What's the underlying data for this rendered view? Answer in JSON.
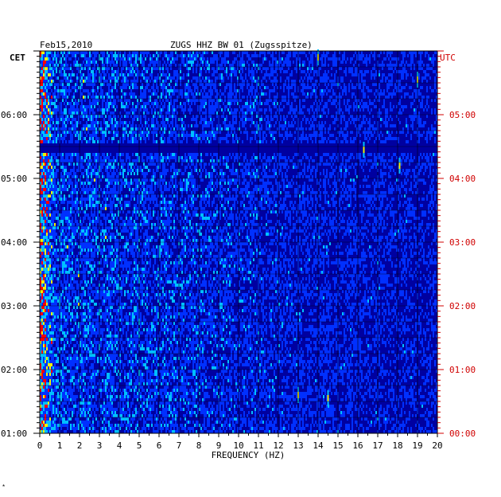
{
  "chart_data": {
    "type": "heatmap",
    "title": "ZUGS HHZ BW 01 (Zugsspitze)",
    "date": "Feb15,2010",
    "left_axis_unit": "CET",
    "right_axis_unit": "UTC",
    "xlabel": "FREQUENCY (HZ)",
    "xlim": [
      0,
      20
    ],
    "x_ticks": [
      "0",
      "1",
      "2",
      "3",
      "4",
      "5",
      "6",
      "7",
      "8",
      "9",
      "10",
      "11",
      "12",
      "13",
      "14",
      "15",
      "16",
      "17",
      "18",
      "19",
      "20"
    ],
    "cet_ticks": [
      {
        "label": "06:00",
        "hour": 6
      },
      {
        "label": "05:00",
        "hour": 5
      },
      {
        "label": "04:00",
        "hour": 4
      },
      {
        "label": "03:00",
        "hour": 3
      },
      {
        "label": "02:00",
        "hour": 2
      },
      {
        "label": "01:00",
        "hour": 1
      }
    ],
    "utc_ticks": [
      {
        "label": "05:00",
        "hour": 5
      },
      {
        "label": "04:00",
        "hour": 4
      },
      {
        "label": "03:00",
        "hour": 3
      },
      {
        "label": "02:00",
        "hour": 2
      },
      {
        "label": "01:00",
        "hour": 1
      },
      {
        "label": "00:00",
        "hour": 0
      }
    ],
    "cet_range": [
      1.0,
      7.0
    ],
    "colormap": [
      "#0000a0",
      "#0030ff",
      "#00c0ff",
      "#f0f000",
      "#ff0000"
    ],
    "grid": true,
    "bright_events": [
      {
        "freq": 13.0,
        "cet_hour": 1.6
      },
      {
        "freq": 14.5,
        "cet_hour": 1.55
      },
      {
        "freq": 16.3,
        "cet_hour": 5.45
      },
      {
        "freq": 18.1,
        "cet_hour": 5.2
      },
      {
        "freq": 19.0,
        "cet_hour": 6.55
      },
      {
        "freq": 14.0,
        "cet_hour": 6.9
      }
    ],
    "quiet_band_cet": [
      5.4,
      5.55
    ]
  },
  "footer_mark": "*"
}
